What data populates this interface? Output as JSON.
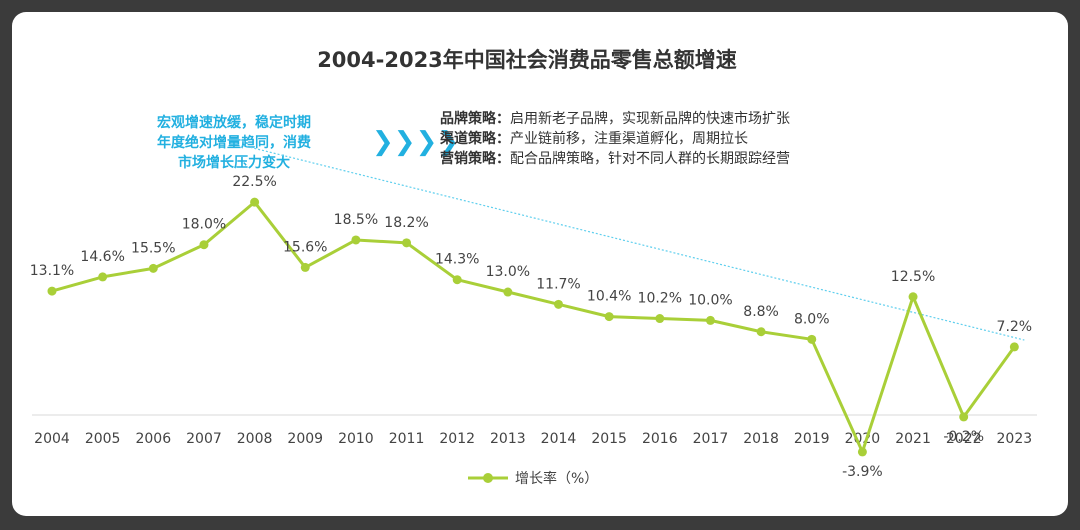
{
  "chart_data": {
    "type": "line",
    "title": "2004-2023年中国社会消费品零售总额增速",
    "categories": [
      "2004",
      "2005",
      "2006",
      "2007",
      "2008",
      "2009",
      "2010",
      "2011",
      "2012",
      "2013",
      "2014",
      "2015",
      "2016",
      "2017",
      "2018",
      "2019",
      "2020",
      "2021",
      "2022",
      "2023"
    ],
    "series": [
      {
        "name": "增长率（%）",
        "values": [
          13.1,
          14.6,
          15.5,
          18.0,
          22.5,
          15.6,
          18.5,
          18.2,
          14.3,
          13.0,
          11.7,
          10.4,
          10.2,
          10.0,
          8.8,
          8.0,
          -3.9,
          12.5,
          -0.2,
          7.2
        ],
        "labels": [
          "13.1%",
          "14.6%",
          "15.5%",
          "18.0%",
          "22.5%",
          "15.6%",
          "18.5%",
          "18.2%",
          "14.3%",
          "13.0%",
          "11.7%",
          "10.4%",
          "10.2%",
          "10.0%",
          "8.8%",
          "8.0%",
          "-3.9%",
          "12.5%",
          "-0.2%",
          "7.2%"
        ],
        "color": "#a9cf38"
      }
    ],
    "trendline": {
      "from": [
        2008,
        28.5
      ],
      "to": [
        2023,
        7.5
      ],
      "color": "#5fcfee",
      "style": "dotted"
    },
    "ylim": [
      -4.5,
      30
    ],
    "grid": false,
    "legend_position": "bottom-center",
    "xlabel": "",
    "ylabel": ""
  },
  "annotation": {
    "callout_lines": [
      "宏观增速放缓，稳定时期",
      "年度绝对增量趋同，消费",
      "市场增长压力变大"
    ],
    "callout_color": "#22b0e0",
    "arrows": "❯❯❯❯",
    "strategies": [
      {
        "label": "品牌策略：",
        "text": "启用新老子品牌，实现新品牌的快速市场扩张"
      },
      {
        "label": "渠道策略：",
        "text": "产业链前移，注重渠道孵化，周期拉长"
      },
      {
        "label": "营销策略：",
        "text": "配合品牌策略，针对不同人群的长期跟踪经营"
      }
    ]
  }
}
